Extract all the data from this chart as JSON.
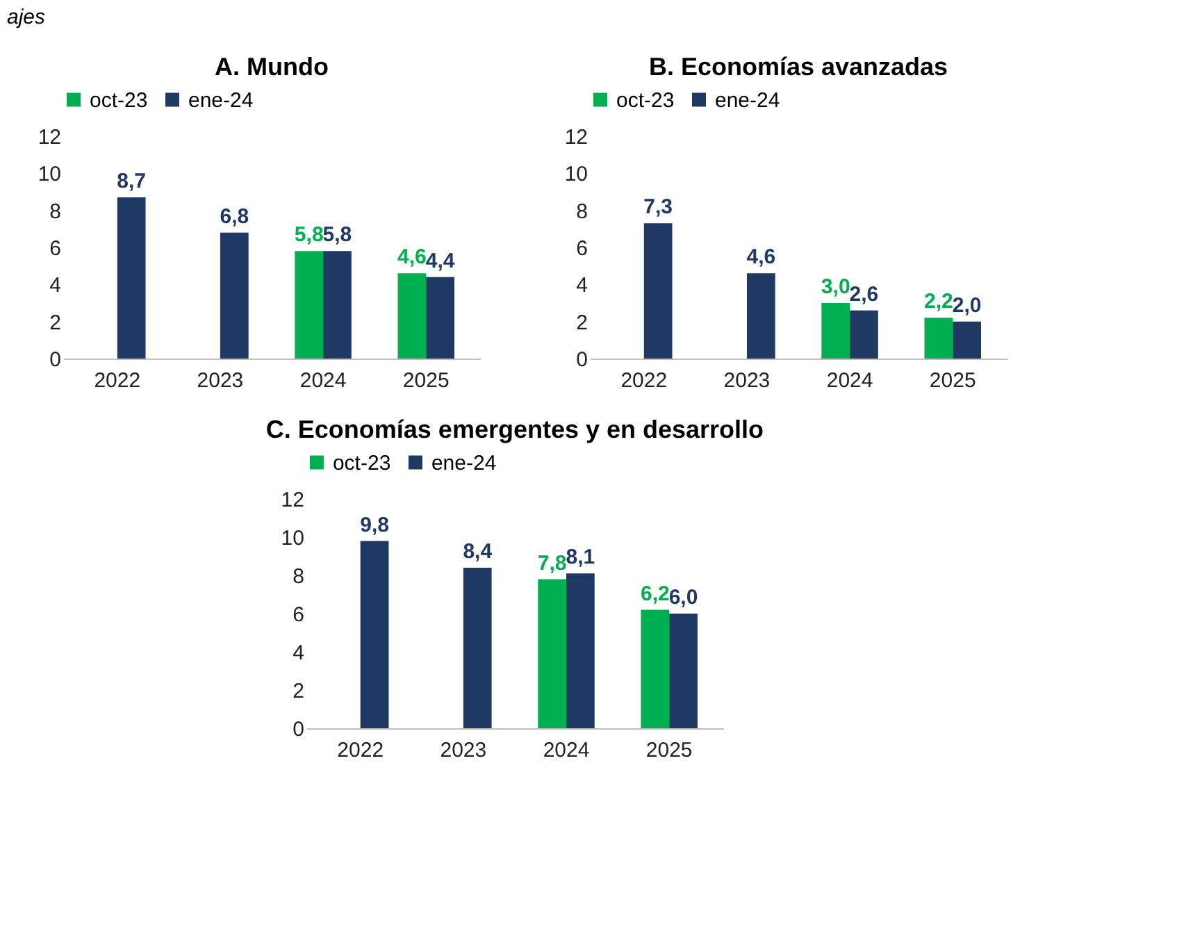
{
  "chart_data": [
    {
      "type": "bar",
      "title": "A.   Mundo",
      "annotations": [
        "ajes"
      ],
      "categories": [
        "2022",
        "2023",
        "2024",
        "2025"
      ],
      "series": [
        {
          "name": "oct-23",
          "color": "#00b050",
          "values": [
            null,
            null,
            5.8,
            4.6
          ],
          "value_labels": [
            null,
            null,
            "5,8",
            "4,6"
          ]
        },
        {
          "name": "ene-24",
          "color": "#1f3864",
          "values": [
            8.7,
            6.8,
            5.8,
            4.4
          ],
          "value_labels": [
            "8,7",
            "6,8",
            "5,8",
            "4,4"
          ]
        }
      ],
      "ylim": [
        0,
        12
      ],
      "yticks": [
        0,
        2,
        4,
        6,
        8,
        10,
        12
      ],
      "legend": "top",
      "grid": false
    },
    {
      "type": "bar",
      "title": "B. Economías avanzadas",
      "categories": [
        "2022",
        "2023",
        "2024",
        "2025"
      ],
      "series": [
        {
          "name": "oct-23",
          "color": "#00b050",
          "values": [
            null,
            null,
            3.0,
            2.2
          ],
          "value_labels": [
            null,
            null,
            "3,0",
            "2,2"
          ]
        },
        {
          "name": "ene-24",
          "color": "#1f3864",
          "values": [
            7.3,
            4.6,
            2.6,
            2.0
          ],
          "value_labels": [
            "7,3",
            "4,6",
            "2,6",
            "2,0"
          ]
        }
      ],
      "ylim": [
        0,
        12
      ],
      "yticks": [
        0,
        2,
        4,
        6,
        8,
        10,
        12
      ],
      "legend": "top",
      "grid": false
    },
    {
      "type": "bar",
      "title": "C. Economías emergentes y en desarrollo",
      "categories": [
        "2022",
        "2023",
        "2024",
        "2025"
      ],
      "series": [
        {
          "name": "oct-23",
          "color": "#00b050",
          "values": [
            null,
            null,
            7.8,
            6.2
          ],
          "value_labels": [
            null,
            null,
            "7,8",
            "6,2"
          ]
        },
        {
          "name": "ene-24",
          "color": "#1f3864",
          "values": [
            9.8,
            8.4,
            8.1,
            6.0
          ],
          "value_labels": [
            "9,8",
            "8,4",
            "8,1",
            "6,0"
          ]
        }
      ],
      "ylim": [
        0,
        12
      ],
      "yticks": [
        0,
        2,
        4,
        6,
        8,
        10,
        12
      ],
      "legend": "top",
      "grid": false
    }
  ]
}
